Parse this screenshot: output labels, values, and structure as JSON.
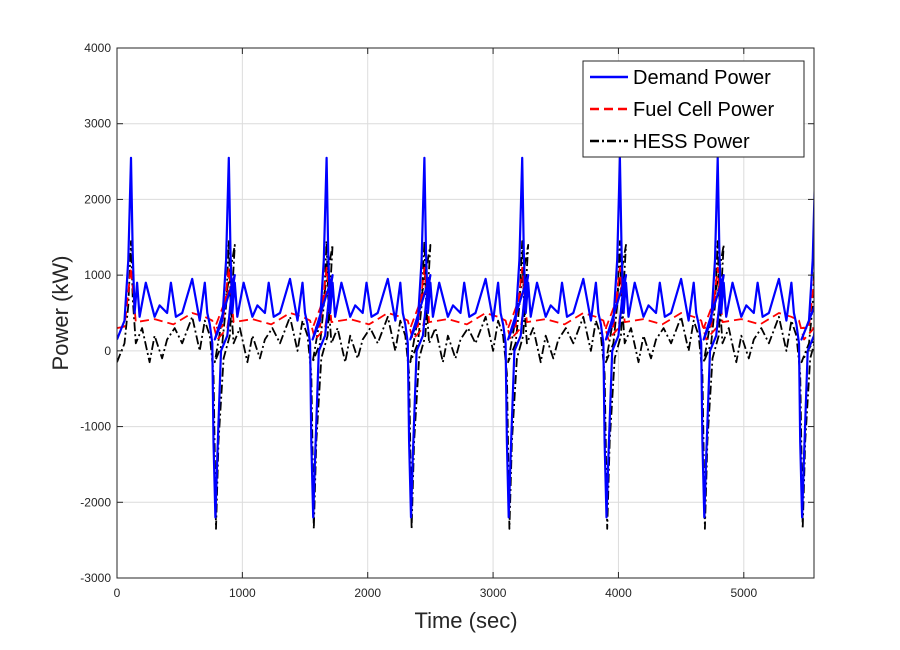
{
  "chart_data": {
    "type": "line",
    "title": "",
    "xlabel": "Time (sec)",
    "ylabel": "Power (kW)",
    "xlim": [
      0,
      5560
    ],
    "ylim": [
      -3000,
      4000
    ],
    "xticks": [
      0,
      1000,
      2000,
      3000,
      4000,
      5000
    ],
    "yticks": [
      -3000,
      -2000,
      -1000,
      0,
      1000,
      2000,
      3000,
      4000
    ],
    "xtick_labels": [
      "0",
      "1000",
      "2000",
      "3000",
      "4000",
      "5000"
    ],
    "ytick_labels": [
      "-3000",
      "-2000",
      "-1000",
      "0",
      "1000",
      "2000",
      "3000",
      "4000"
    ],
    "grid": true,
    "legend_position": "top-right",
    "cycle_period": 780,
    "cycles": 8,
    "series": [
      {
        "name": "Demand Power",
        "color": "#0000ff",
        "style": "solid",
        "cycle_x": [
          0,
          60,
          90,
          112,
          125,
          140,
          160,
          180,
          230,
          300,
          340,
          400,
          430,
          470,
          520,
          600,
          660,
          700,
          720,
          740,
          760,
          770,
          785,
          800,
          830,
          880,
          910,
          940
        ],
        "cycle_y": [
          150,
          400,
          1200,
          2550,
          1300,
          500,
          900,
          450,
          900,
          450,
          600,
          500,
          900,
          450,
          500,
          950,
          400,
          900,
          500,
          350,
          100,
          -1200,
          -2200,
          -1400,
          0,
          200,
          700,
          1000
        ]
      },
      {
        "name": "Fuel Cell Power",
        "color": "#ff0000",
        "style": "dashed",
        "cycle_x": [
          0,
          60,
          112,
          150,
          300,
          450,
          600,
          700,
          760,
          800,
          880,
          940
        ],
        "cycle_y": [
          300,
          320,
          1100,
          380,
          420,
          350,
          500,
          450,
          400,
          150,
          300,
          1000
        ],
        "baseline_note": ""
      },
      {
        "name": "HESS Power",
        "color": "#000000",
        "style": "dashdot",
        "cycle_x": [
          0,
          60,
          90,
          112,
          125,
          150,
          200,
          260,
          300,
          360,
          400,
          460,
          520,
          600,
          660,
          700,
          740,
          770,
          790,
          810,
          850,
          900,
          940
        ],
        "cycle_y": [
          -150,
          100,
          600,
          1450,
          700,
          100,
          300,
          -150,
          200,
          -100,
          150,
          300,
          100,
          450,
          0,
          400,
          200,
          -300,
          -2350,
          -1200,
          -100,
          200,
          1400
        ]
      }
    ]
  }
}
